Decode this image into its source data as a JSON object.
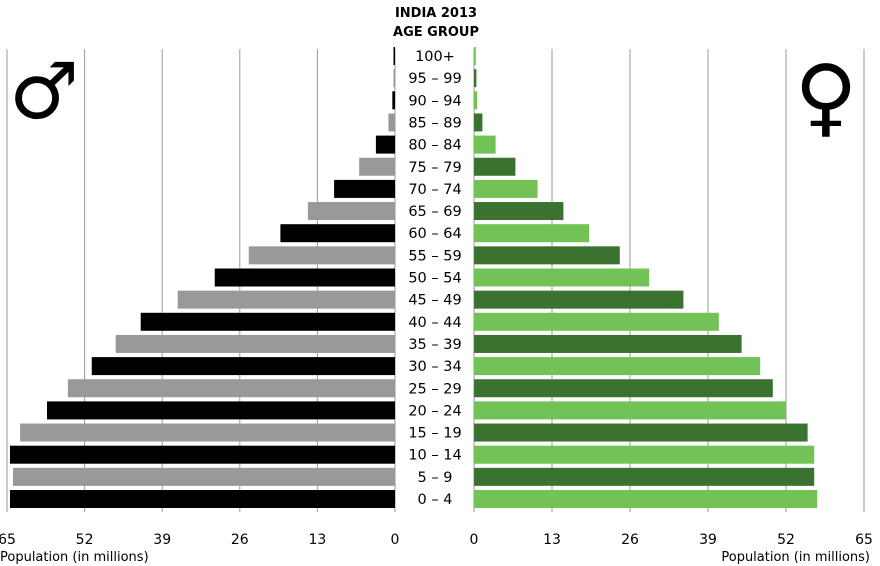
{
  "chart_data": {
    "type": "bar",
    "title_lines": [
      "INDIA 2013",
      "AGE GROUP"
    ],
    "categories": [
      "0 – 4",
      "5 – 9",
      "10 – 14",
      "15 – 19",
      "20 – 24",
      "25 – 29",
      "30 – 34",
      "35 – 39",
      "40 – 44",
      "45 – 49",
      "50 – 54",
      "55 – 59",
      "60 – 64",
      "65 – 69",
      "70 – 74",
      "75 – 79",
      "80 – 84",
      "85 – 89",
      "90 – 94",
      "95 – 99",
      "100+"
    ],
    "series": [
      {
        "side": "male",
        "values": [
          64.5,
          64.0,
          64.5,
          62.8,
          58.3,
          54.8,
          50.8,
          46.8,
          42.6,
          36.4,
          30.2,
          24.5,
          19.2,
          14.6,
          10.2,
          6.0,
          3.2,
          1.1,
          0.45,
          0.25,
          0.15
        ]
      },
      {
        "side": "female",
        "values": [
          57.2,
          56.7,
          56.7,
          55.6,
          52.0,
          49.8,
          47.7,
          44.6,
          40.8,
          34.9,
          29.2,
          24.3,
          19.2,
          14.9,
          10.6,
          6.9,
          3.6,
          1.4,
          0.5,
          0.4,
          0.3
        ]
      }
    ],
    "x_ticks_left": [
      "65",
      "52",
      "39",
      "26",
      "13",
      "0"
    ],
    "x_ticks_right": [
      "0",
      "13",
      "26",
      "39",
      "52",
      "65"
    ],
    "xlim": [
      0,
      65
    ],
    "xlabel_left": "Population (in millions)",
    "xlabel_right": "Population (in millions)",
    "male_symbol": "♂",
    "female_symbol": "♀",
    "grid": true,
    "colors": {
      "male_dark": "#000000",
      "male_light": "#999999",
      "female_dark": "#3a7230",
      "female_light": "#72c255",
      "grid": "#9a9a9a"
    }
  }
}
